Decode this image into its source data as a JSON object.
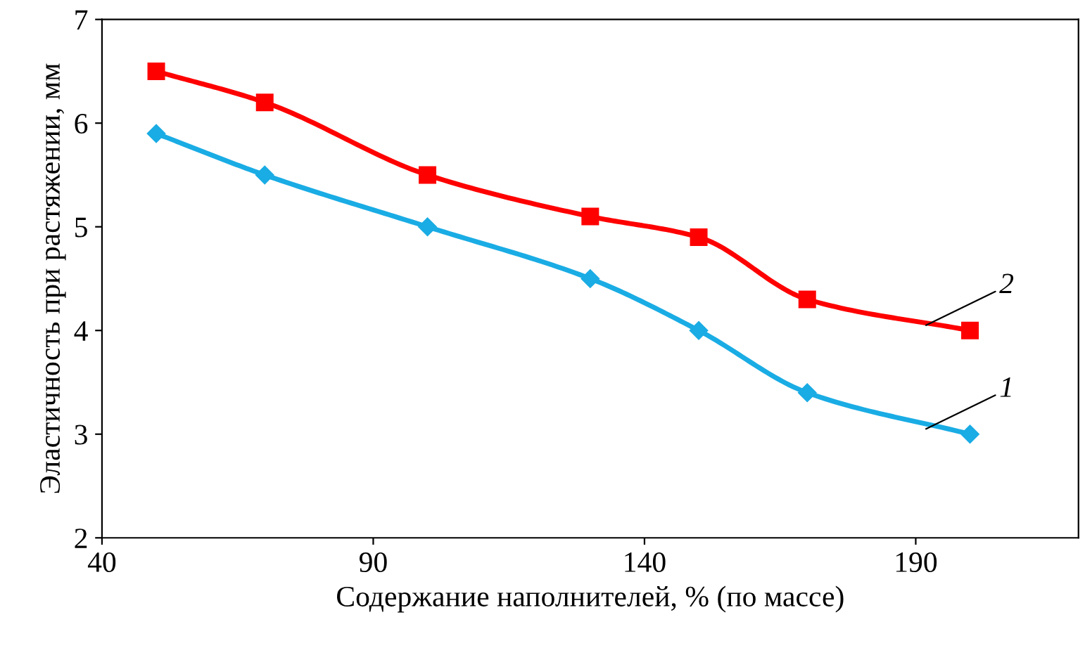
{
  "chart_data": {
    "type": "line",
    "xlabel": "Содержание наполнителей, % (по массе)",
    "ylabel": "Эластичность при растяжении, мм",
    "x": [
      50,
      70,
      100,
      130,
      150,
      170,
      200
    ],
    "series": [
      {
        "name": "1",
        "color": "#1aace4",
        "marker": "diamond",
        "values": [
          5.9,
          5.5,
          5.0,
          4.5,
          4.0,
          3.4,
          3.0
        ]
      },
      {
        "name": "2",
        "color": "#ff0000",
        "marker": "square",
        "values": [
          6.5,
          6.2,
          5.5,
          5.1,
          4.9,
          4.3,
          4.0
        ]
      }
    ],
    "xlim": [
      40,
      220
    ],
    "xticks": [
      40,
      90,
      140,
      190
    ],
    "ylim": [
      2,
      7
    ],
    "yticks": [
      2,
      3,
      4,
      5,
      6,
      7
    ],
    "grid": false,
    "legend": false,
    "line_style": "solid"
  }
}
